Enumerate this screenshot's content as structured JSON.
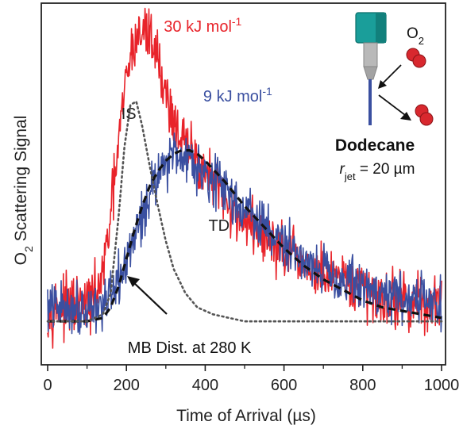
{
  "chart_data": {
    "type": "line",
    "xlabel": "Time of Arrival (µs)",
    "ylabel": {
      "prefix": "O",
      "sub": "2",
      "suffix": " Scattering Signal"
    },
    "xlim": [
      0,
      1000
    ],
    "ylim": [
      0,
      1
    ],
    "x_ticks": [
      0,
      200,
      400,
      600,
      800,
      1000
    ],
    "x_tick_labels": [
      "0",
      "200",
      "400",
      "600",
      "800",
      "1000"
    ],
    "y_tick_labels": false,
    "grid": false,
    "colors": {
      "red": "#e8232a",
      "blue": "#3a4fa0",
      "td": "#111111",
      "is": "#555555"
    },
    "series": [
      {
        "name": "30 kJ mol-1",
        "color": "#e8232a",
        "style": "noisy",
        "noise": 0.05,
        "x": [
          0,
          50,
          100,
          120,
          140,
          160,
          180,
          200,
          215,
          230,
          245,
          260,
          275,
          290,
          310,
          330,
          350,
          380,
          410,
          450,
          500,
          550,
          600,
          650,
          700,
          750,
          800,
          850,
          900,
          950,
          1000
        ],
        "y": [
          0.16,
          0.16,
          0.17,
          0.19,
          0.25,
          0.42,
          0.63,
          0.82,
          0.9,
          0.94,
          0.95,
          0.94,
          0.9,
          0.82,
          0.73,
          0.67,
          0.62,
          0.58,
          0.53,
          0.47,
          0.41,
          0.36,
          0.32,
          0.28,
          0.25,
          0.23,
          0.21,
          0.19,
          0.18,
          0.17,
          0.17
        ]
      },
      {
        "name": "9 kJ mol-1",
        "color": "#3a4fa0",
        "style": "noisy",
        "noise": 0.045,
        "x": [
          0,
          50,
          100,
          140,
          160,
          180,
          200,
          220,
          240,
          260,
          280,
          300,
          320,
          340,
          360,
          380,
          400,
          450,
          500,
          550,
          600,
          650,
          700,
          750,
          800,
          850,
          900,
          950,
          1000
        ],
        "y": [
          0.16,
          0.16,
          0.16,
          0.17,
          0.18,
          0.23,
          0.29,
          0.36,
          0.42,
          0.49,
          0.55,
          0.58,
          0.6,
          0.6,
          0.59,
          0.57,
          0.55,
          0.5,
          0.44,
          0.39,
          0.34,
          0.3,
          0.27,
          0.24,
          0.22,
          0.2,
          0.19,
          0.18,
          0.17
        ]
      },
      {
        "name": "TD",
        "color": "#111111",
        "style": "dashed",
        "x": [
          0,
          100,
          140,
          160,
          180,
          200,
          220,
          240,
          260,
          280,
          300,
          320,
          340,
          360,
          380,
          400,
          450,
          500,
          550,
          600,
          650,
          700,
          750,
          800,
          850,
          900,
          950,
          1000
        ],
        "y": [
          0.12,
          0.12,
          0.13,
          0.16,
          0.22,
          0.3,
          0.38,
          0.45,
          0.51,
          0.55,
          0.58,
          0.6,
          0.61,
          0.61,
          0.6,
          0.58,
          0.52,
          0.45,
          0.39,
          0.33,
          0.28,
          0.24,
          0.21,
          0.18,
          0.16,
          0.15,
          0.14,
          0.13
        ]
      },
      {
        "name": "IS",
        "color": "#555555",
        "style": "dotted",
        "x": [
          0,
          100,
          140,
          160,
          180,
          195,
          210,
          225,
          240,
          260,
          280,
          300,
          320,
          350,
          380,
          420,
          460,
          500,
          550,
          600,
          700,
          800,
          900,
          1000
        ],
        "y": [
          0.12,
          0.12,
          0.14,
          0.2,
          0.42,
          0.62,
          0.74,
          0.75,
          0.68,
          0.56,
          0.45,
          0.35,
          0.27,
          0.2,
          0.16,
          0.14,
          0.13,
          0.12,
          0.12,
          0.12,
          0.12,
          0.12,
          0.12,
          0.12
        ]
      }
    ],
    "annotations": [
      {
        "id": "red",
        "main": "30 kJ mol",
        "sup": "-1",
        "color": "#e8232a",
        "x": 295,
        "y": 0.95
      },
      {
        "id": "blue",
        "main": "9 kJ mol",
        "sup": "-1",
        "color": "#3a4fa0",
        "x": 395,
        "y": 0.75
      },
      {
        "id": "is",
        "main": "IS",
        "color": "#222222",
        "x": 225,
        "y": 0.7
      },
      {
        "id": "td",
        "main": "TD",
        "color": "#222222",
        "x": 435,
        "y": 0.38
      },
      {
        "id": "mb",
        "main": "MB Dist. at 280 K",
        "color": "#111111",
        "x": 360,
        "y": 0.03
      }
    ],
    "inset": {
      "molecule_main": "O",
      "molecule_sub": "2",
      "solvent": "Dodecane",
      "jet_var": "r",
      "jet_sub": "jet",
      "jet_value": " = 20 µm"
    }
  }
}
